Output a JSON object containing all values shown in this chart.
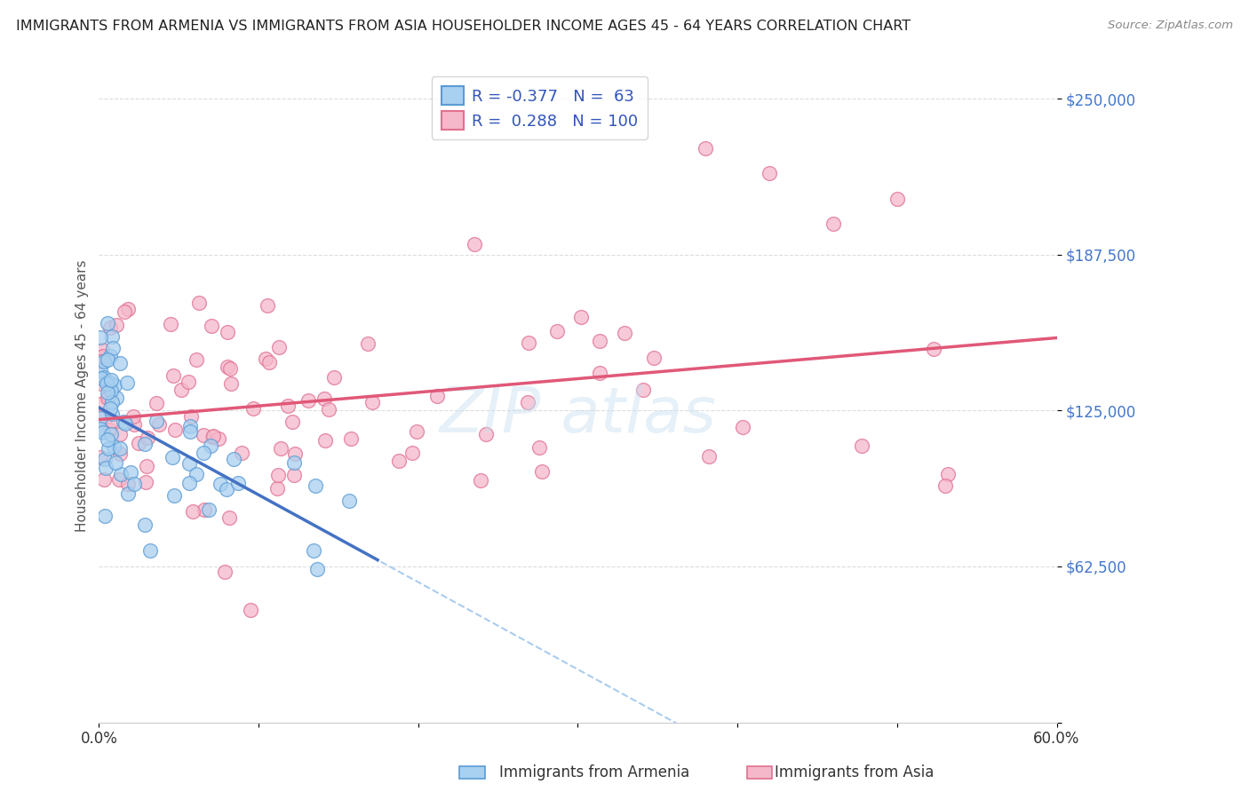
{
  "title": "IMMIGRANTS FROM ARMENIA VS IMMIGRANTS FROM ASIA HOUSEHOLDER INCOME AGES 45 - 64 YEARS CORRELATION CHART",
  "source": "Source: ZipAtlas.com",
  "ylabel": "Householder Income Ages 45 - 64 years",
  "ytick_values": [
    0,
    62500,
    125000,
    187500,
    250000
  ],
  "ytick_labels": [
    "",
    "$62,500",
    "$125,000",
    "$187,500",
    "$250,000"
  ],
  "xlim": [
    0.0,
    0.6
  ],
  "ylim": [
    0,
    262000
  ],
  "legend_r_armenia": "-0.377",
  "legend_n_armenia": "63",
  "legend_r_asia": "0.288",
  "legend_n_asia": "100",
  "color_armenia_fill": "#A8D0F0",
  "color_armenia_edge": "#5B9BD5",
  "color_asia_fill": "#F5B8CB",
  "color_asia_edge": "#E07090",
  "color_line_armenia": "#4472C4",
  "color_line_asia": "#E05878",
  "color_line_dash": "#AACCEE",
  "color_ytick": "#4477CC",
  "color_xtick": "#333333",
  "color_title": "#222222",
  "color_source": "#888888",
  "color_grid": "#DDDDDD",
  "color_legend_text": "#3355BB",
  "color_legend_border": "#CCCCCC",
  "background_color": "#FFFFFF",
  "watermark": "ZIPAtlas",
  "legend_label_armenia": "R =  -0.377   N =   63",
  "legend_label_asia": "R =   0.288   N = 100"
}
